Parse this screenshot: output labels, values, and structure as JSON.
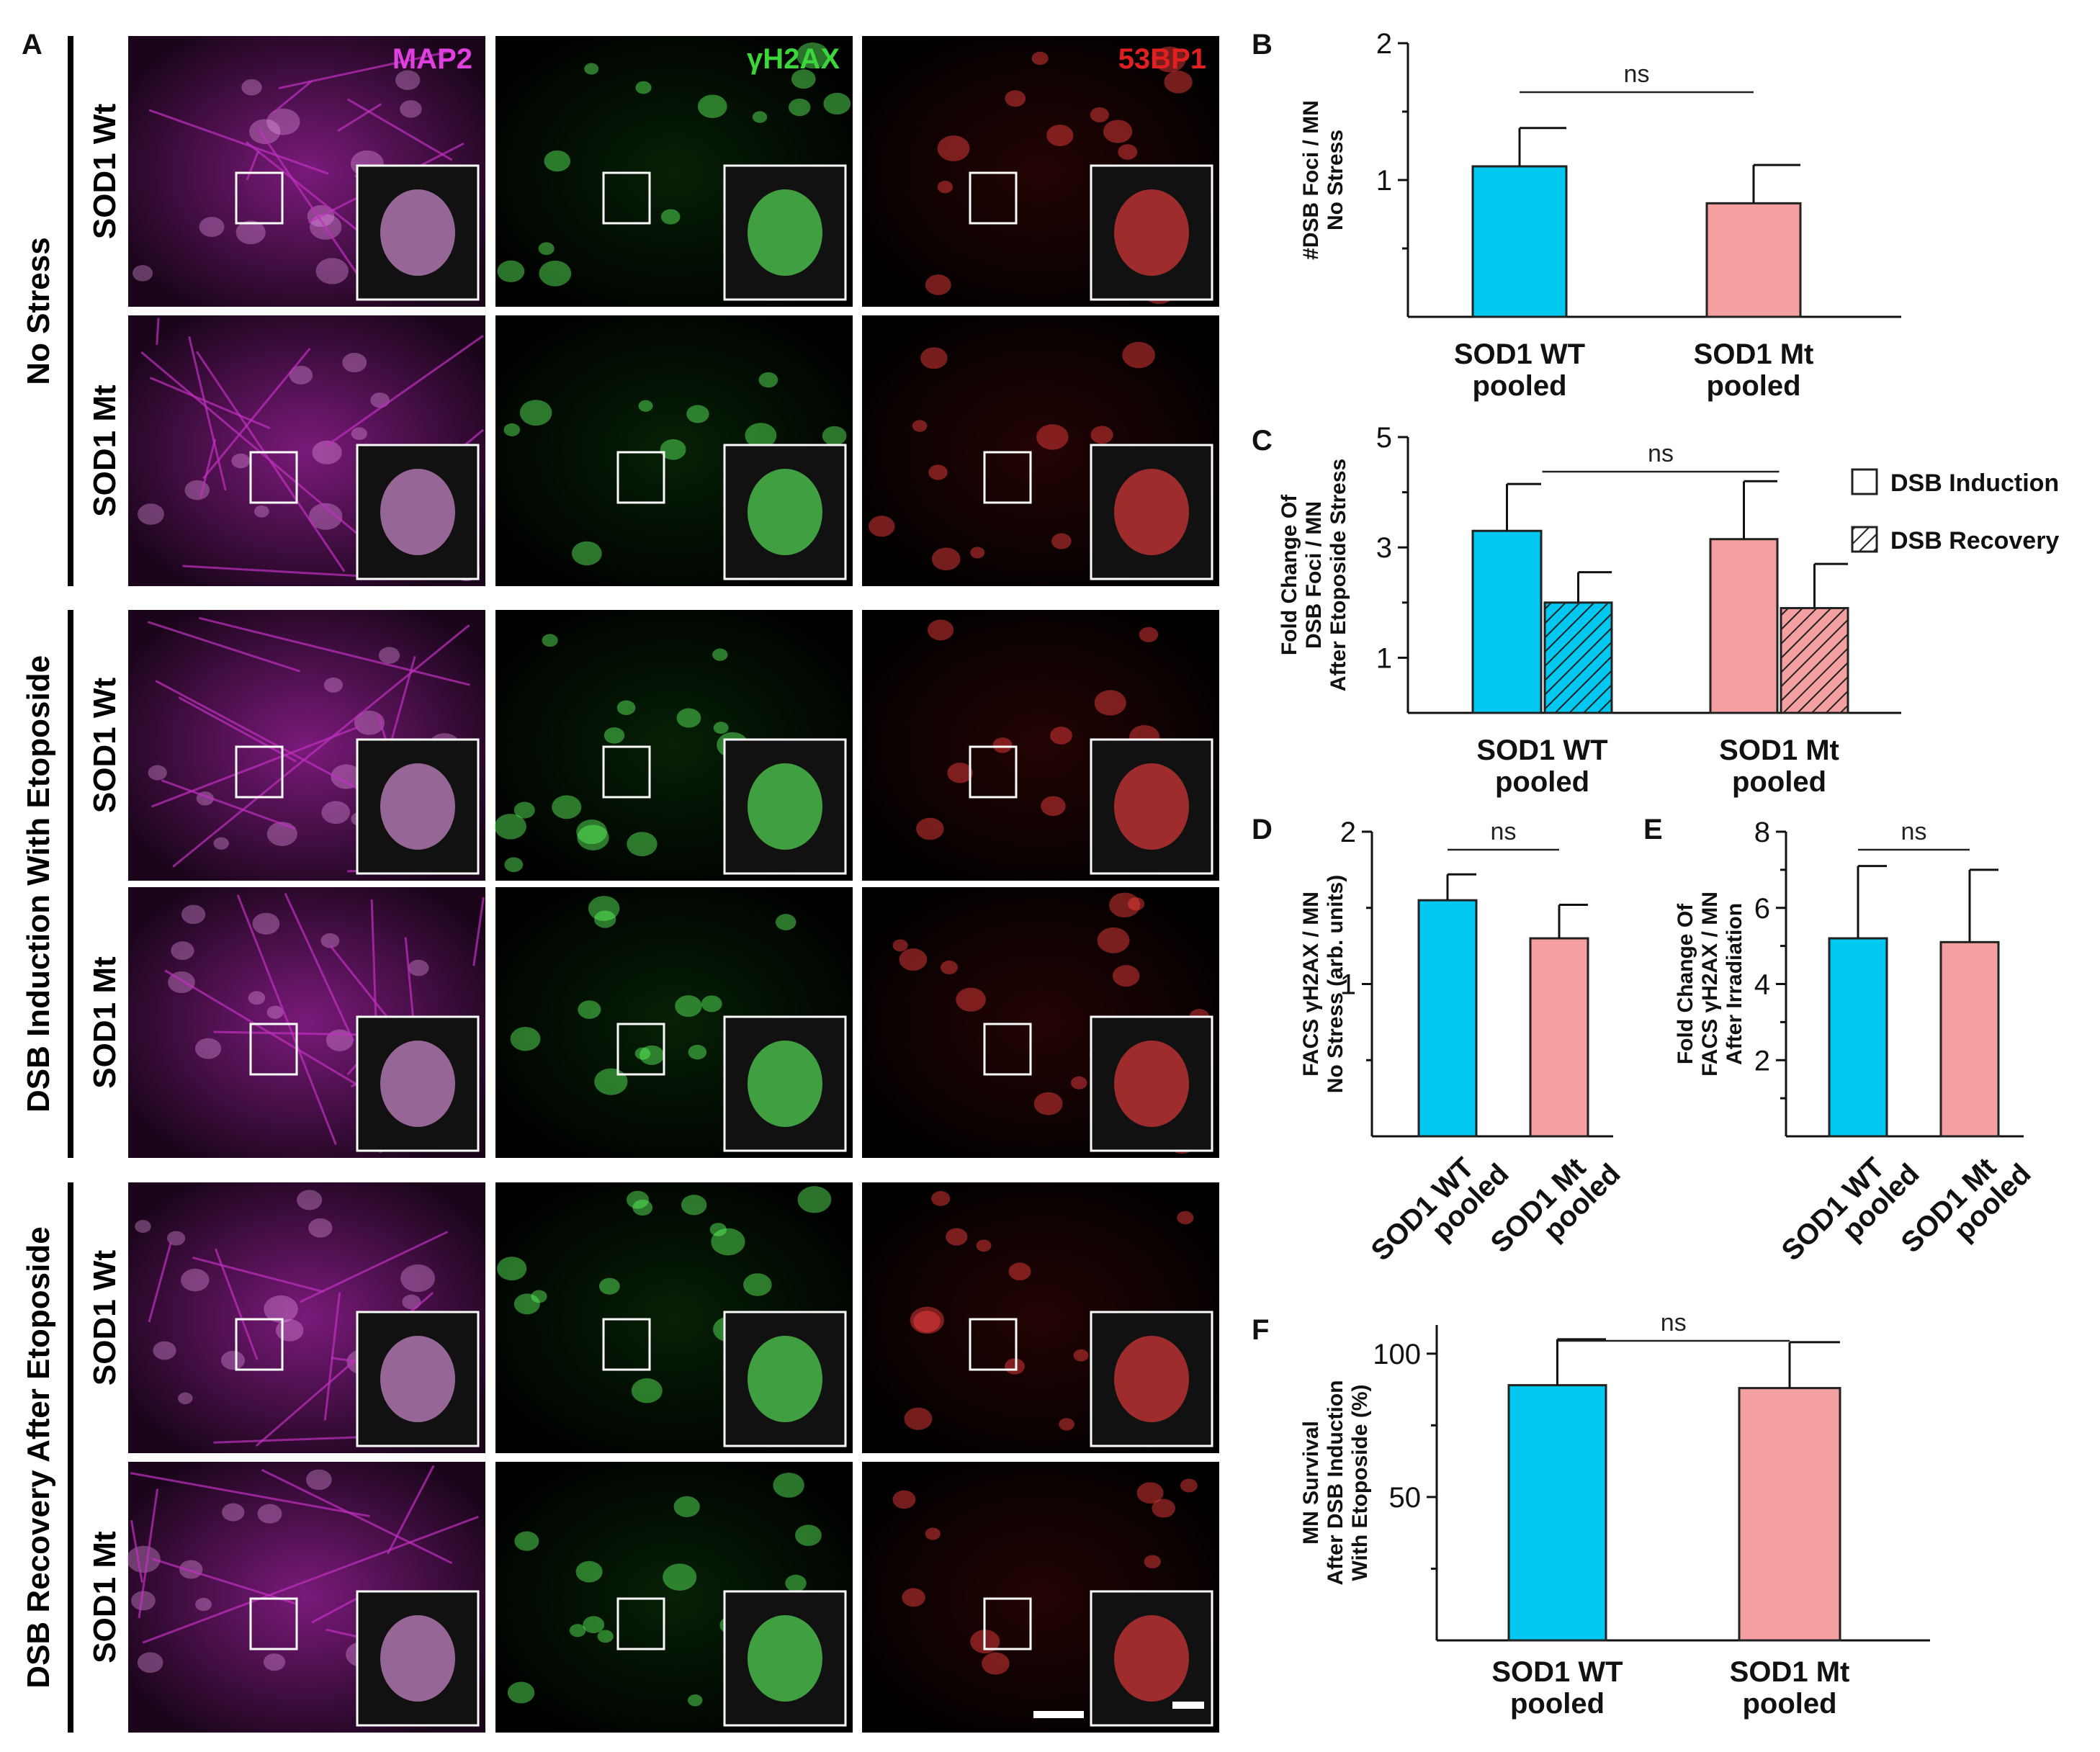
{
  "panel_a": {
    "letter": "A",
    "channels": [
      {
        "name": "MAP2",
        "color": "#e040e0"
      },
      {
        "name": "γH2AX",
        "color": "#3ad63a"
      },
      {
        "name": "53BP1",
        "color": "#e02020"
      }
    ],
    "groups": [
      {
        "label": "No Stress",
        "label_color": "#000000",
        "rows": [
          "SOD1 Wt",
          "SOD1 Mt"
        ]
      },
      {
        "label": "DSB Induction With Etoposide",
        "label_color": "#555555",
        "rows": [
          "SOD1 Wt",
          "SOD1 Mt"
        ]
      },
      {
        "label": "DSB Recovery After Etoposide",
        "label_color": "#000000",
        "rows": [
          "SOD1 Wt",
          "SOD1 Mt"
        ]
      }
    ]
  },
  "colors": {
    "wt": "#00c8f0",
    "mt": "#f4a0a0",
    "outline": "#222222"
  },
  "chart_data": [
    {
      "panel": "B",
      "type": "bar",
      "categories": [
        "SOD1 WT\npooled",
        "SOD1 Mt\npooled"
      ],
      "values": [
        1.1,
        0.83
      ],
      "errors": [
        0.28,
        0.28
      ],
      "ylabel": "#DSB Foci / MN\nNo Stress",
      "ylim": [
        0,
        2
      ],
      "yticks": [
        1,
        2
      ],
      "annotation": "ns"
    },
    {
      "panel": "C",
      "type": "bar",
      "categories": [
        "SOD1 WT\npooled",
        "SOD1 Mt\npooled"
      ],
      "series": [
        {
          "name": "DSB Induction",
          "values": [
            3.3,
            3.15
          ],
          "errors": [
            0.85,
            1.05
          ]
        },
        {
          "name": "DSB Recovery",
          "values": [
            2.0,
            1.9
          ],
          "errors": [
            0.55,
            0.8
          ]
        }
      ],
      "ylabel": "Fold Change Of\nDSB Foci / MN\nAfter Etoposide Stress",
      "ylim": [
        0,
        5
      ],
      "yticks": [
        1,
        3,
        5
      ],
      "annotation": "ns",
      "legend": "right"
    },
    {
      "panel": "D",
      "type": "bar",
      "categories": [
        "SOD1 WT\npooled",
        "SOD1 Mt\npooled"
      ],
      "values": [
        1.55,
        1.3
      ],
      "errors": [
        0.17,
        0.22
      ],
      "ylabel": "FACS γH2AX / MN\nNo Stress (arb. units)",
      "ylim": [
        0,
        2
      ],
      "yticks": [
        1,
        2
      ],
      "annotation": "ns"
    },
    {
      "panel": "E",
      "type": "bar",
      "categories": [
        "SOD1 WT\npooled",
        "SOD1 Mt\npooled"
      ],
      "values": [
        5.2,
        5.1
      ],
      "errors": [
        1.9,
        1.9
      ],
      "ylabel": "Fold Change Of\nFACS γH2AX / MN\nAfter Irradiation",
      "ylim": [
        0,
        8
      ],
      "yticks": [
        2,
        4,
        6,
        8
      ],
      "annotation": "ns"
    },
    {
      "panel": "F",
      "type": "bar",
      "categories": [
        "SOD1 WT\npooled",
        "SOD1 Mt\npooled"
      ],
      "values": [
        89,
        88
      ],
      "errors": [
        16,
        16
      ],
      "ylabel": "MN Survival\nAfter DSB Induction\nWith Etoposide (%)",
      "ylim": [
        0,
        110
      ],
      "yticks": [
        50,
        100
      ],
      "annotation": "ns"
    }
  ]
}
